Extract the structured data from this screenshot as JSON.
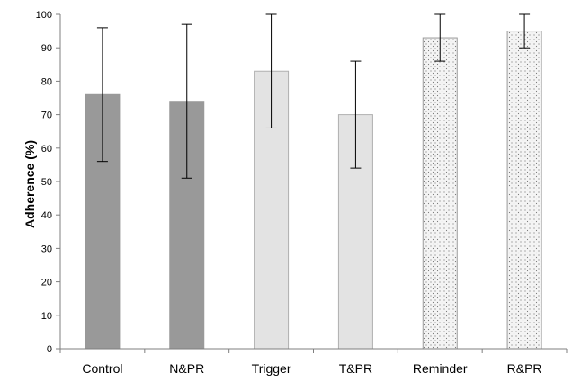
{
  "chart_data": {
    "type": "bar",
    "ylabel": "Adherence (%)",
    "xlabel": "",
    "ylim": [
      0,
      100
    ],
    "yticks": [
      0,
      10,
      20,
      30,
      40,
      50,
      60,
      70,
      80,
      90,
      100
    ],
    "grid": false,
    "legend": "none",
    "categories": [
      "Control",
      "N&PR",
      "Trigger",
      "T&PR",
      "Reminder",
      "R&PR"
    ],
    "values": [
      76,
      74,
      83,
      70,
      93,
      95
    ],
    "error_low": [
      56,
      51,
      66,
      54,
      86,
      90
    ],
    "error_high": [
      96,
      97,
      100,
      86,
      100,
      100
    ],
    "bar_styles": [
      "dark",
      "dark",
      "light",
      "light",
      "dotted",
      "dotted"
    ],
    "colors": {
      "dark": "#999999",
      "light": "#e3e3e3",
      "dotted_bg": "#f4f4f4",
      "dotted_dot": "#7a7a7a",
      "axis": "#7f7f7f",
      "error_bar": "#000000"
    }
  }
}
